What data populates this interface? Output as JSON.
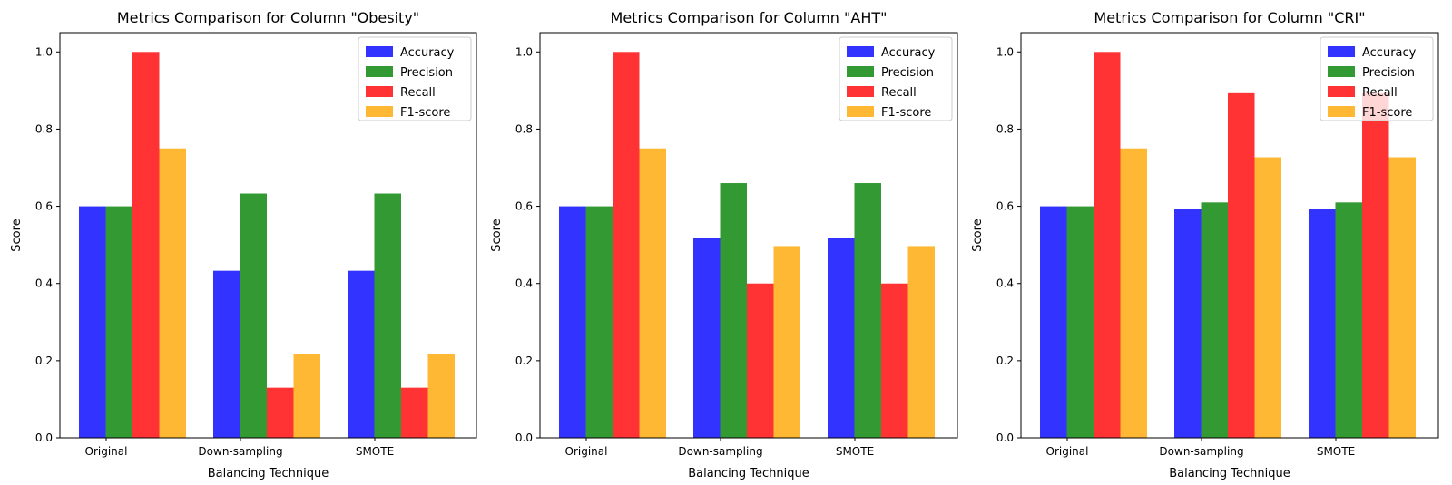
{
  "chart_data": [
    {
      "type": "bar",
      "title": "Metrics Comparison for Column \"Obesity\"",
      "xlabel": "Balancing Technique",
      "ylabel": "Score",
      "ylim": [
        0,
        1.05
      ],
      "yticks": [
        "0.0",
        "0.2",
        "0.4",
        "0.6",
        "0.8",
        "1.0"
      ],
      "categories": [
        "Original",
        "Down-sampling",
        "SMOTE"
      ],
      "legend_position": "top-right",
      "series": [
        {
          "name": "Accuracy",
          "color": "#3333ff",
          "values": [
            0.6,
            0.433,
            0.433
          ]
        },
        {
          "name": "Precision",
          "color": "#339933",
          "values": [
            0.6,
            0.633,
            0.633
          ]
        },
        {
          "name": "Recall",
          "color": "#ff3333",
          "values": [
            1.0,
            0.13,
            0.13
          ]
        },
        {
          "name": "F1-score",
          "color": "#ffb833",
          "values": [
            0.75,
            0.217,
            0.217
          ]
        }
      ]
    },
    {
      "type": "bar",
      "title": "Metrics Comparison for Column \"AHT\"",
      "xlabel": "Balancing Technique",
      "ylabel": "Score",
      "ylim": [
        0,
        1.05
      ],
      "yticks": [
        "0.0",
        "0.2",
        "0.4",
        "0.6",
        "0.8",
        "1.0"
      ],
      "categories": [
        "Original",
        "Down-sampling",
        "SMOTE"
      ],
      "legend_position": "top-right",
      "series": [
        {
          "name": "Accuracy",
          "color": "#3333ff",
          "values": [
            0.6,
            0.517,
            0.517
          ]
        },
        {
          "name": "Precision",
          "color": "#339933",
          "values": [
            0.6,
            0.66,
            0.66
          ]
        },
        {
          "name": "Recall",
          "color": "#ff3333",
          "values": [
            1.0,
            0.4,
            0.4
          ]
        },
        {
          "name": "F1-score",
          "color": "#ffb833",
          "values": [
            0.75,
            0.497,
            0.497
          ]
        }
      ]
    },
    {
      "type": "bar",
      "title": "Metrics Comparison for Column \"CRI\"",
      "xlabel": "Balancing Technique",
      "ylabel": "Score",
      "ylim": [
        0,
        1.05
      ],
      "yticks": [
        "0.0",
        "0.2",
        "0.4",
        "0.6",
        "0.8",
        "1.0"
      ],
      "categories": [
        "Original",
        "Down-sampling",
        "SMOTE"
      ],
      "legend_position": "top-right",
      "series": [
        {
          "name": "Accuracy",
          "color": "#3333ff",
          "values": [
            0.6,
            0.593,
            0.593
          ]
        },
        {
          "name": "Precision",
          "color": "#339933",
          "values": [
            0.6,
            0.61,
            0.61
          ]
        },
        {
          "name": "Recall",
          "color": "#ff3333",
          "values": [
            1.0,
            0.893,
            0.893
          ]
        },
        {
          "name": "F1-score",
          "color": "#ffb833",
          "values": [
            0.75,
            0.727,
            0.727
          ]
        }
      ]
    }
  ]
}
